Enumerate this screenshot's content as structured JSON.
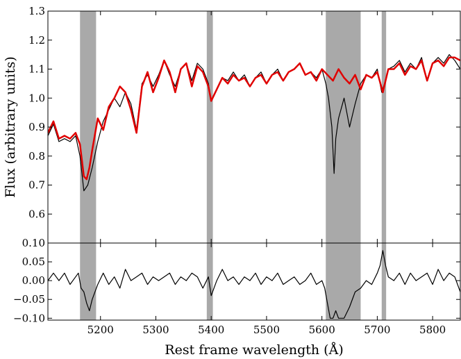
{
  "chart_data": [
    {
      "type": "line",
      "panel": "top",
      "title": "",
      "xlabel": "",
      "ylabel": "Flux (arbitrary units)",
      "xlim": [
        5105,
        5850
      ],
      "ylim": [
        0.5,
        1.3
      ],
      "y_ticks": [
        0.6,
        0.7,
        0.8,
        0.9,
        1.0,
        1.1,
        1.2,
        1.3
      ],
      "y_tick_labels": [
        "0.6",
        "0.7",
        "0.8",
        "0.9",
        "1.0",
        "1.1",
        "1.2",
        "1.3"
      ],
      "grid": false,
      "legend": "none",
      "masked_regions": [
        [
          5163,
          5192
        ],
        [
          5392,
          5403
        ],
        [
          5607,
          5670
        ],
        [
          5708,
          5716
        ]
      ],
      "series": [
        {
          "color": "#000000",
          "x": [
            5105,
            5115,
            5125,
            5135,
            5145,
            5155,
            5163,
            5170,
            5177,
            5185,
            5195,
            5205,
            5215,
            5225,
            5235,
            5245,
            5255,
            5265,
            5275,
            5285,
            5295,
            5305,
            5315,
            5325,
            5335,
            5345,
            5355,
            5365,
            5375,
            5385,
            5395,
            5400,
            5410,
            5420,
            5430,
            5440,
            5450,
            5460,
            5470,
            5480,
            5490,
            5500,
            5510,
            5520,
            5530,
            5540,
            5550,
            5560,
            5570,
            5580,
            5590,
            5600,
            5607,
            5612,
            5618,
            5622,
            5625,
            5630,
            5640,
            5650,
            5660,
            5670,
            5680,
            5690,
            5700,
            5708,
            5713,
            5720,
            5730,
            5740,
            5750,
            5760,
            5770,
            5780,
            5790,
            5800,
            5810,
            5820,
            5830,
            5840,
            5850
          ],
          "values": [
            0.87,
            0.91,
            0.85,
            0.86,
            0.85,
            0.87,
            0.8,
            0.68,
            0.7,
            0.76,
            0.85,
            0.92,
            0.96,
            1.0,
            0.97,
            1.02,
            0.98,
            0.89,
            1.05,
            1.08,
            1.04,
            1.08,
            1.13,
            1.08,
            1.04,
            1.1,
            1.12,
            1.06,
            1.12,
            1.1,
            1.05,
            0.99,
            1.03,
            1.07,
            1.06,
            1.09,
            1.06,
            1.08,
            1.04,
            1.07,
            1.09,
            1.05,
            1.08,
            1.1,
            1.06,
            1.09,
            1.1,
            1.12,
            1.08,
            1.09,
            1.07,
            1.1,
            1.05,
            1.0,
            0.9,
            0.74,
            0.86,
            0.93,
            1.0,
            0.9,
            0.98,
            1.05,
            1.08,
            1.07,
            1.1,
            1.02,
            1.05,
            1.1,
            1.11,
            1.13,
            1.09,
            1.12,
            1.1,
            1.14,
            1.06,
            1.12,
            1.14,
            1.12,
            1.15,
            1.13,
            1.1
          ]
        },
        {
          "color": "#e00000",
          "x": [
            5105,
            5115,
            5125,
            5135,
            5145,
            5155,
            5163,
            5170,
            5175,
            5180,
            5185,
            5195,
            5205,
            5215,
            5225,
            5235,
            5245,
            5255,
            5265,
            5275,
            5285,
            5295,
            5305,
            5315,
            5325,
            5335,
            5345,
            5355,
            5365,
            5375,
            5385,
            5395,
            5400,
            5410,
            5420,
            5430,
            5440,
            5450,
            5460,
            5470,
            5480,
            5490,
            5500,
            5510,
            5520,
            5530,
            5540,
            5550,
            5560,
            5570,
            5580,
            5590,
            5600,
            5610,
            5620,
            5630,
            5640,
            5650,
            5660,
            5670,
            5680,
            5690,
            5700,
            5710,
            5720,
            5730,
            5740,
            5750,
            5760,
            5770,
            5780,
            5790,
            5800,
            5810,
            5820,
            5830,
            5840,
            5850
          ],
          "values": [
            0.88,
            0.92,
            0.86,
            0.87,
            0.86,
            0.88,
            0.84,
            0.73,
            0.72,
            0.76,
            0.82,
            0.93,
            0.89,
            0.97,
            1.0,
            1.04,
            1.02,
            0.96,
            0.88,
            1.04,
            1.09,
            1.02,
            1.07,
            1.13,
            1.09,
            1.02,
            1.1,
            1.12,
            1.04,
            1.11,
            1.09,
            1.04,
            0.99,
            1.03,
            1.07,
            1.05,
            1.08,
            1.06,
            1.07,
            1.04,
            1.07,
            1.08,
            1.05,
            1.08,
            1.09,
            1.06,
            1.09,
            1.1,
            1.12,
            1.08,
            1.09,
            1.06,
            1.1,
            1.08,
            1.06,
            1.1,
            1.07,
            1.05,
            1.08,
            1.03,
            1.08,
            1.07,
            1.09,
            1.02,
            1.1,
            1.1,
            1.12,
            1.08,
            1.11,
            1.1,
            1.13,
            1.06,
            1.12,
            1.13,
            1.11,
            1.14,
            1.14,
            1.13
          ]
        }
      ]
    },
    {
      "type": "line",
      "panel": "bottom",
      "title": "",
      "xlabel": "Rest frame wavelength (Å)",
      "ylabel": "",
      "xlim": [
        5105,
        5850
      ],
      "ylim": [
        -0.105,
        0.1
      ],
      "x_ticks": [
        5200,
        5300,
        5400,
        5500,
        5600,
        5700,
        5800
      ],
      "x_tick_labels": [
        "5200",
        "5300",
        "5400",
        "5500",
        "5600",
        "5700",
        "5800"
      ],
      "y_ticks": [
        -0.1,
        -0.05,
        0.0,
        0.05,
        0.1
      ],
      "y_tick_labels": [
        "−0.10",
        "−0.05",
        "0.00",
        "0.05",
        "0.10"
      ],
      "grid": false,
      "legend": "none",
      "masked_regions": [
        [
          5163,
          5192
        ],
        [
          5392,
          5403
        ],
        [
          5607,
          5670
        ],
        [
          5708,
          5716
        ]
      ],
      "series": [
        {
          "color": "#000000",
          "x": [
            5105,
            5115,
            5125,
            5135,
            5145,
            5155,
            5160,
            5165,
            5170,
            5175,
            5180,
            5185,
            5195,
            5205,
            5215,
            5225,
            5235,
            5245,
            5255,
            5265,
            5275,
            5285,
            5295,
            5305,
            5315,
            5325,
            5335,
            5345,
            5355,
            5365,
            5375,
            5385,
            5395,
            5400,
            5410,
            5420,
            5430,
            5440,
            5450,
            5460,
            5470,
            5480,
            5490,
            5500,
            5510,
            5520,
            5530,
            5540,
            5550,
            5560,
            5570,
            5580,
            5590,
            5600,
            5605,
            5610,
            5615,
            5620,
            5625,
            5630,
            5640,
            5650,
            5660,
            5670,
            5680,
            5690,
            5700,
            5705,
            5710,
            5715,
            5720,
            5730,
            5740,
            5750,
            5760,
            5770,
            5780,
            5790,
            5800,
            5810,
            5820,
            5830,
            5840,
            5850
          ],
          "values": [
            0.0,
            0.02,
            0.0,
            0.02,
            -0.01,
            0.01,
            0.02,
            -0.02,
            -0.03,
            -0.06,
            -0.08,
            -0.05,
            -0.01,
            0.02,
            -0.01,
            0.01,
            -0.02,
            0.03,
            0.0,
            0.01,
            0.02,
            -0.01,
            0.01,
            0.0,
            0.01,
            0.02,
            -0.01,
            0.01,
            0.0,
            0.02,
            0.01,
            -0.02,
            0.01,
            -0.04,
            0.0,
            0.03,
            0.0,
            0.01,
            -0.01,
            0.01,
            0.0,
            0.02,
            -0.01,
            0.01,
            0.0,
            0.02,
            -0.01,
            0.0,
            0.01,
            -0.01,
            0.0,
            0.02,
            -0.01,
            0.0,
            -0.02,
            -0.06,
            -0.1,
            -0.1,
            -0.08,
            -0.1,
            -0.1,
            -0.07,
            -0.03,
            -0.02,
            0.0,
            -0.01,
            0.02,
            0.04,
            0.08,
            0.04,
            0.01,
            0.0,
            0.02,
            -0.01,
            0.02,
            0.0,
            0.01,
            0.02,
            -0.01,
            0.03,
            0.0,
            0.02,
            0.01,
            -0.03
          ]
        }
      ]
    }
  ]
}
